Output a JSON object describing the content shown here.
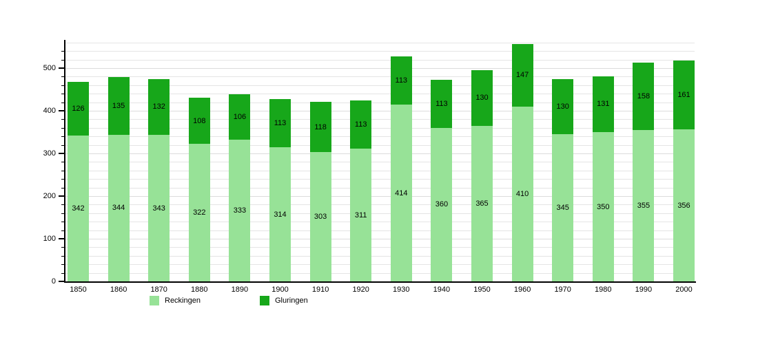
{
  "chart_data": {
    "type": "bar",
    "stacked": true,
    "title": "",
    "xlabel": "",
    "ylabel": "",
    "categories": [
      "1850",
      "1860",
      "1870",
      "1880",
      "1890",
      "1900",
      "1910",
      "1920",
      "1930",
      "1940",
      "1950",
      "1960",
      "1970",
      "1980",
      "1990",
      "2000"
    ],
    "series": [
      {
        "name": "Reckingen",
        "color": "#97e297",
        "values": [
          342,
          344,
          343,
          322,
          333,
          314,
          303,
          311,
          414,
          360,
          365,
          410,
          345,
          350,
          355,
          356
        ]
      },
      {
        "name": "Gluringen",
        "color": "#17a71a",
        "values": [
          126,
          135,
          132,
          108,
          106,
          113,
          118,
          113,
          113,
          113,
          130,
          147,
          130,
          131,
          158,
          161
        ]
      }
    ],
    "totals": [
      468,
      479,
      475,
      430,
      439,
      427,
      421,
      424,
      527,
      473,
      495,
      557,
      475,
      481,
      513,
      517
    ],
    "value_labels_shown": true,
    "ylim": [
      0,
      560
    ],
    "yticks": [
      "0",
      "100",
      "200",
      "300",
      "400",
      "500"
    ],
    "ytick_interval": 100,
    "minor_grid_interval": 20,
    "grid": true,
    "legend_position": "bottom"
  },
  "legend": {
    "items": [
      {
        "label": "Reckingen",
        "color": "#97e297"
      },
      {
        "label": "Gluringen",
        "color": "#17a71a"
      }
    ]
  },
  "colors": {
    "background": "#ffffff",
    "axis": "#000000",
    "gridline": "#e4e4e4",
    "label_text": "#000000"
  }
}
